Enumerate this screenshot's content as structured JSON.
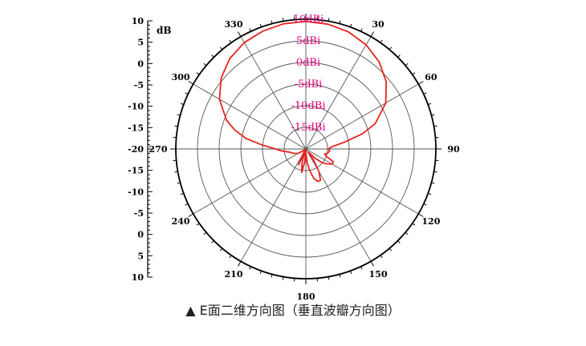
{
  "chart_data": {
    "type": "polar-line",
    "radial_unit_label": "dB",
    "radial_ticks": [
      10,
      5,
      0,
      -5,
      -10,
      -15,
      -20
    ],
    "ring_labels": [
      "10dBi",
      "5dBi",
      "0dBi",
      "-5dBi",
      "-10dBi",
      "-15dBi"
    ],
    "angle_ticks": [
      0,
      30,
      60,
      90,
      120,
      150,
      180,
      210,
      240,
      270,
      300,
      330
    ],
    "angle_labels": [
      "",
      "30",
      "60",
      "90",
      "120",
      "150",
      "180",
      "210",
      "240",
      "270",
      "300",
      "330"
    ],
    "rlim": [
      -20,
      10
    ],
    "left_scale_labels": [
      "10",
      "5",
      "0",
      "-5",
      "-10",
      "-15",
      "-20",
      "-15",
      "-10",
      "-5",
      "0",
      "5",
      "10"
    ],
    "series": [
      {
        "color": "#e8231f",
        "points": [
          [
            0,
            9.5
          ],
          [
            10,
            9.3
          ],
          [
            20,
            8.8
          ],
          [
            30,
            7.8
          ],
          [
            40,
            6.3
          ],
          [
            50,
            4.2
          ],
          [
            60,
            1.3
          ],
          [
            70,
            -3
          ],
          [
            75,
            -6.5
          ],
          [
            80,
            -11
          ],
          [
            85,
            -14
          ],
          [
            90,
            -14.8
          ],
          [
            95,
            -14.5
          ],
          [
            100,
            -14.8
          ],
          [
            105,
            -15.5
          ],
          [
            110,
            -15
          ],
          [
            115,
            -13
          ],
          [
            120,
            -13
          ],
          [
            125,
            -14
          ],
          [
            130,
            -15
          ],
          [
            135,
            -17
          ],
          [
            140,
            -19
          ],
          [
            145,
            -17
          ],
          [
            150,
            -14
          ],
          [
            155,
            -12
          ],
          [
            160,
            -12
          ],
          [
            165,
            -13
          ],
          [
            170,
            -15
          ],
          [
            175,
            -17
          ],
          [
            180,
            -19.5
          ],
          [
            185,
            -17
          ],
          [
            190,
            -14.5
          ],
          [
            195,
            -16.5
          ],
          [
            200,
            -19
          ],
          [
            205,
            -16
          ],
          [
            210,
            -19
          ],
          [
            215,
            -19.8
          ],
          [
            225,
            -19.8
          ],
          [
            240,
            -18
          ],
          [
            250,
            -17
          ],
          [
            260,
            -16
          ],
          [
            265,
            -14.5
          ],
          [
            270,
            -13
          ],
          [
            275,
            -10
          ],
          [
            280,
            -6
          ],
          [
            285,
            -3
          ],
          [
            290,
            -0.5
          ],
          [
            300,
            3
          ],
          [
            310,
            5.5
          ],
          [
            320,
            7.3
          ],
          [
            330,
            8.4
          ],
          [
            340,
            9
          ],
          [
            350,
            9.4
          ],
          [
            360,
            9.5
          ]
        ]
      }
    ]
  },
  "caption": "▲ E面二维方向图（垂直波瓣方向图）"
}
